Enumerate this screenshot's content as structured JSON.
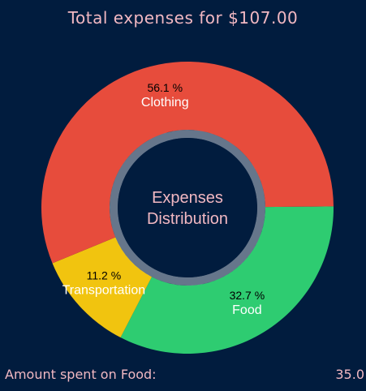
{
  "header": {
    "title": "Total expenses for $107.00"
  },
  "chart_data": {
    "type": "pie",
    "center_label_lines": [
      "Expenses",
      "Distribution"
    ],
    "slices": [
      {
        "name": "Food",
        "percent_label": "32.7 %",
        "value": 35.0,
        "color": "#2ecc71"
      },
      {
        "name": "Transportation",
        "percent_label": "11.2 %",
        "value": 12.0,
        "color": "#f1c40f"
      },
      {
        "name": "Clothing",
        "percent_label": "56.1 %",
        "value": 60.0,
        "color": "#e74c3c"
      }
    ],
    "label_colors": {
      "percent": "#000000",
      "name": "#ffffff",
      "center": "#f2b8c2"
    }
  },
  "footer": {
    "label": "Amount spent on Food:",
    "value": "35.0"
  }
}
